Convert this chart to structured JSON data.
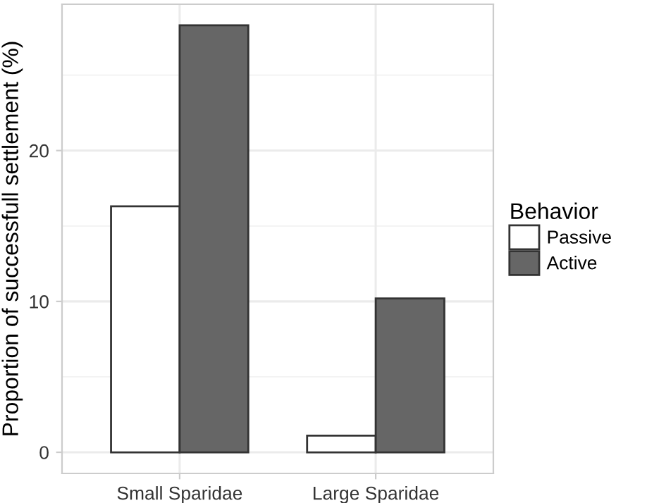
{
  "chart_data": {
    "type": "bar",
    "ylabel": "Proportion of successfull settlement (%)",
    "legend_title": "Behavior",
    "categories": [
      "Small Sparidae",
      "Large Sparidae"
    ],
    "series": [
      {
        "name": "Passive",
        "color": "#ffffff",
        "values": [
          16.3,
          1.1
        ]
      },
      {
        "name": "Active",
        "color": "#666666",
        "values": [
          28.3,
          10.2
        ]
      }
    ],
    "ylim": [
      -1.4,
      29.7
    ],
    "yticks": [
      0,
      10,
      20
    ],
    "grid": true,
    "legend": "right"
  }
}
